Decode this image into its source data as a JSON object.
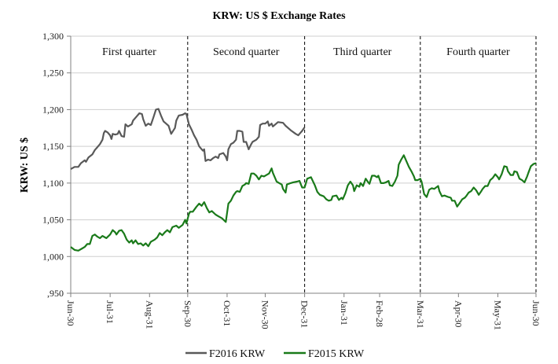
{
  "chart_data": {
    "type": "line",
    "title": "KRW: US $ Exchange Rates",
    "xlabel": "",
    "ylabel": "KRW: US $",
    "ylim": [
      950,
      1300
    ],
    "xlim_days": [
      0,
      366
    ],
    "grid": true,
    "yticks": [
      {
        "value": 950,
        "label": ",950"
      },
      {
        "value": 1000,
        "label": "1,000"
      },
      {
        "value": 1050,
        "label": "1,050"
      },
      {
        "value": 1100,
        "label": "1,100"
      },
      {
        "value": 1150,
        "label": "1,150"
      },
      {
        "value": 1200,
        "label": "1,200"
      },
      {
        "value": 1250,
        "label": "1,250"
      },
      {
        "value": 1300,
        "label": "1,300"
      }
    ],
    "xticks": [
      {
        "day": 0,
        "label": "Jun-30"
      },
      {
        "day": 31,
        "label": "Jul-31"
      },
      {
        "day": 62,
        "label": "Aug-31"
      },
      {
        "day": 92,
        "label": "Sep-30"
      },
      {
        "day": 123,
        "label": "Oct-31"
      },
      {
        "day": 153,
        "label": "Nov-30"
      },
      {
        "day": 184,
        "label": "Dec-31"
      },
      {
        "day": 215,
        "label": "Jan-31"
      },
      {
        "day": 243,
        "label": "Feb-28"
      },
      {
        "day": 275,
        "label": "Mar-31"
      },
      {
        "day": 305,
        "label": "Apr-30"
      },
      {
        "day": 336,
        "label": "May-31"
      },
      {
        "day": 366,
        "label": "Jun-30"
      }
    ],
    "quarter_dividers_days": [
      92,
      184,
      275,
      366
    ],
    "quarters": [
      {
        "label": "First quarter",
        "start": 0,
        "end": 92
      },
      {
        "label": "Second quarter",
        "start": 92,
        "end": 184
      },
      {
        "label": "Third quarter",
        "start": 184,
        "end": 275
      },
      {
        "label": "Fourth quarter",
        "start": 275,
        "end": 366
      }
    ],
    "legend_position": "bottom",
    "series": [
      {
        "name": "F2016 KRW",
        "color": "#595959",
        "points": [
          [
            0,
            1119
          ],
          [
            3,
            1122
          ],
          [
            6,
            1122
          ],
          [
            8,
            1127
          ],
          [
            11,
            1131
          ],
          [
            12,
            1129
          ],
          [
            14,
            1135
          ],
          [
            17,
            1139
          ],
          [
            19,
            1145
          ],
          [
            21,
            1149
          ],
          [
            23,
            1153
          ],
          [
            25,
            1159
          ],
          [
            26,
            1168
          ],
          [
            27,
            1171
          ],
          [
            29,
            1169
          ],
          [
            31,
            1165
          ],
          [
            32,
            1160
          ],
          [
            33,
            1167
          ],
          [
            35,
            1166
          ],
          [
            37,
            1167
          ],
          [
            38,
            1171
          ],
          [
            40,
            1164
          ],
          [
            42,
            1163
          ],
          [
            43,
            1180
          ],
          [
            45,
            1177
          ],
          [
            48,
            1180
          ],
          [
            49,
            1185
          ],
          [
            51,
            1189
          ],
          [
            54,
            1195
          ],
          [
            56,
            1194
          ],
          [
            57,
            1187
          ],
          [
            59,
            1178
          ],
          [
            61,
            1181
          ],
          [
            63,
            1179
          ],
          [
            65,
            1189
          ],
          [
            67,
            1200
          ],
          [
            69,
            1201
          ],
          [
            71,
            1192
          ],
          [
            73,
            1184
          ],
          [
            75,
            1181
          ],
          [
            77,
            1178
          ],
          [
            79,
            1167
          ],
          [
            82,
            1175
          ],
          [
            83,
            1185
          ],
          [
            85,
            1192
          ],
          [
            88,
            1193
          ],
          [
            90,
            1195
          ],
          [
            91,
            1194
          ],
          [
            93,
            1180
          ],
          [
            95,
            1173
          ],
          [
            97,
            1165
          ],
          [
            99,
            1159
          ],
          [
            101,
            1150
          ],
          [
            103,
            1146
          ],
          [
            104,
            1144
          ],
          [
            105,
            1146
          ],
          [
            106,
            1130
          ],
          [
            108,
            1132
          ],
          [
            110,
            1131
          ],
          [
            112,
            1134
          ],
          [
            114,
            1136
          ],
          [
            116,
            1134
          ],
          [
            117,
            1139
          ],
          [
            120,
            1141
          ],
          [
            122,
            1136
          ],
          [
            123,
            1131
          ],
          [
            124,
            1146
          ],
          [
            126,
            1153
          ],
          [
            128,
            1155
          ],
          [
            130,
            1159
          ],
          [
            131,
            1171
          ],
          [
            133,
            1171
          ],
          [
            135,
            1170
          ],
          [
            136,
            1156
          ],
          [
            138,
            1156
          ],
          [
            140,
            1146
          ],
          [
            142,
            1153
          ],
          [
            143,
            1156
          ],
          [
            146,
            1159
          ],
          [
            148,
            1163
          ],
          [
            149,
            1179
          ],
          [
            151,
            1181
          ],
          [
            153,
            1181
          ],
          [
            155,
            1184
          ],
          [
            156,
            1178
          ],
          [
            158,
            1181
          ],
          [
            159,
            1177
          ],
          [
            163,
            1183
          ],
          [
            167,
            1182
          ],
          [
            169,
            1178
          ],
          [
            173,
            1172
          ],
          [
            177,
            1167
          ],
          [
            179,
            1165
          ],
          [
            182,
            1171
          ],
          [
            184,
            1176
          ]
        ]
      },
      {
        "name": "F2015 KRW",
        "color": "#1a7a1a",
        "points": [
          [
            0,
            1013
          ],
          [
            3,
            1009
          ],
          [
            6,
            1008
          ],
          [
            9,
            1011
          ],
          [
            11,
            1013
          ],
          [
            13,
            1017
          ],
          [
            15,
            1017
          ],
          [
            17,
            1028
          ],
          [
            19,
            1030
          ],
          [
            21,
            1027
          ],
          [
            23,
            1025
          ],
          [
            25,
            1028
          ],
          [
            27,
            1026
          ],
          [
            28,
            1025
          ],
          [
            31,
            1030
          ],
          [
            33,
            1036
          ],
          [
            35,
            1033
          ],
          [
            36,
            1030
          ],
          [
            38,
            1035
          ],
          [
            40,
            1036
          ],
          [
            42,
            1031
          ],
          [
            44,
            1023
          ],
          [
            46,
            1019
          ],
          [
            48,
            1022
          ],
          [
            49,
            1018
          ],
          [
            51,
            1022
          ],
          [
            53,
            1017
          ],
          [
            55,
            1018
          ],
          [
            57,
            1015
          ],
          [
            59,
            1018
          ],
          [
            61,
            1014
          ],
          [
            63,
            1020
          ],
          [
            66,
            1023
          ],
          [
            68,
            1026
          ],
          [
            70,
            1032
          ],
          [
            72,
            1029
          ],
          [
            74,
            1033
          ],
          [
            76,
            1036
          ],
          [
            78,
            1033
          ],
          [
            80,
            1040
          ],
          [
            83,
            1042
          ],
          [
            85,
            1039
          ],
          [
            88,
            1043
          ],
          [
            90,
            1050
          ],
          [
            91,
            1045
          ],
          [
            93,
            1058
          ],
          [
            94,
            1061
          ],
          [
            96,
            1061
          ],
          [
            99,
            1068
          ],
          [
            101,
            1072
          ],
          [
            103,
            1069
          ],
          [
            105,
            1074
          ],
          [
            107,
            1066
          ],
          [
            109,
            1060
          ],
          [
            111,
            1062
          ],
          [
            114,
            1057
          ],
          [
            116,
            1055
          ],
          [
            119,
            1052
          ],
          [
            122,
            1047
          ],
          [
            124,
            1072
          ],
          [
            126,
            1076
          ],
          [
            128,
            1083
          ],
          [
            130,
            1088
          ],
          [
            131,
            1089
          ],
          [
            133,
            1088
          ],
          [
            135,
            1096
          ],
          [
            137,
            1098
          ],
          [
            138,
            1100
          ],
          [
            140,
            1099
          ],
          [
            142,
            1113
          ],
          [
            144,
            1113
          ],
          [
            146,
            1110
          ],
          [
            148,
            1105
          ],
          [
            150,
            1110
          ],
          [
            152,
            1109
          ],
          [
            154,
            1111
          ],
          [
            156,
            1113
          ],
          [
            158,
            1120
          ],
          [
            159,
            1114
          ],
          [
            162,
            1102
          ],
          [
            164,
            1100
          ],
          [
            166,
            1098
          ],
          [
            167,
            1092
          ],
          [
            169,
            1087
          ],
          [
            170,
            1098
          ],
          [
            173,
            1100
          ],
          [
            175,
            1101
          ],
          [
            178,
            1102
          ],
          [
            180,
            1103
          ],
          [
            182,
            1094
          ],
          [
            184,
            1094
          ],
          [
            186,
            1106
          ],
          [
            189,
            1108
          ],
          [
            192,
            1097
          ],
          [
            194,
            1088
          ],
          [
            196,
            1084
          ],
          [
            199,
            1082
          ],
          [
            201,
            1078
          ],
          [
            203,
            1076
          ],
          [
            205,
            1077
          ],
          [
            206,
            1082
          ],
          [
            209,
            1083
          ],
          [
            211,
            1077
          ],
          [
            213,
            1080
          ],
          [
            214,
            1078
          ],
          [
            216,
            1086
          ],
          [
            218,
            1097
          ],
          [
            220,
            1102
          ],
          [
            222,
            1097
          ],
          [
            223,
            1089
          ],
          [
            225,
            1097
          ],
          [
            227,
            1095
          ],
          [
            228,
            1100
          ],
          [
            230,
            1096
          ],
          [
            232,
            1106
          ],
          [
            234,
            1101
          ],
          [
            235,
            1099
          ],
          [
            237,
            1110
          ],
          [
            239,
            1110
          ],
          [
            241,
            1108
          ],
          [
            242,
            1110
          ],
          [
            244,
            1100
          ],
          [
            246,
            1100
          ],
          [
            248,
            1101
          ],
          [
            250,
            1103
          ],
          [
            251,
            1097
          ],
          [
            253,
            1096
          ],
          [
            255,
            1102
          ],
          [
            257,
            1110
          ],
          [
            258,
            1125
          ],
          [
            260,
            1132
          ],
          [
            262,
            1138
          ],
          [
            264,
            1130
          ],
          [
            266,
            1122
          ],
          [
            268,
            1116
          ],
          [
            270,
            1109
          ],
          [
            271,
            1104
          ],
          [
            273,
            1104
          ],
          [
            275,
            1106
          ],
          [
            276,
            1102
          ],
          [
            278,
            1085
          ],
          [
            280,
            1081
          ],
          [
            282,
            1091
          ],
          [
            284,
            1093
          ],
          [
            286,
            1092
          ],
          [
            289,
            1096
          ],
          [
            290,
            1089
          ],
          [
            292,
            1082
          ],
          [
            294,
            1083
          ],
          [
            297,
            1081
          ],
          [
            299,
            1080
          ],
          [
            300,
            1076
          ],
          [
            302,
            1076
          ],
          [
            304,
            1068
          ],
          [
            306,
            1073
          ],
          [
            308,
            1078
          ],
          [
            310,
            1080
          ],
          [
            311,
            1082
          ],
          [
            313,
            1087
          ],
          [
            315,
            1089
          ],
          [
            317,
            1094
          ],
          [
            319,
            1090
          ],
          [
            321,
            1084
          ],
          [
            323,
            1089
          ],
          [
            324,
            1092
          ],
          [
            326,
            1096
          ],
          [
            328,
            1096
          ],
          [
            330,
            1104
          ],
          [
            332,
            1107
          ],
          [
            334,
            1112
          ],
          [
            336,
            1108
          ],
          [
            337,
            1105
          ],
          [
            339,
            1112
          ],
          [
            341,
            1123
          ],
          [
            343,
            1122
          ],
          [
            344,
            1116
          ],
          [
            346,
            1111
          ],
          [
            348,
            1111
          ],
          [
            349,
            1116
          ],
          [
            351,
            1115
          ],
          [
            353,
            1106
          ],
          [
            355,
            1104
          ],
          [
            357,
            1101
          ],
          [
            359,
            1109
          ],
          [
            360,
            1114
          ],
          [
            362,
            1123
          ],
          [
            364,
            1126
          ],
          [
            366,
            1127
          ]
        ]
      }
    ]
  }
}
